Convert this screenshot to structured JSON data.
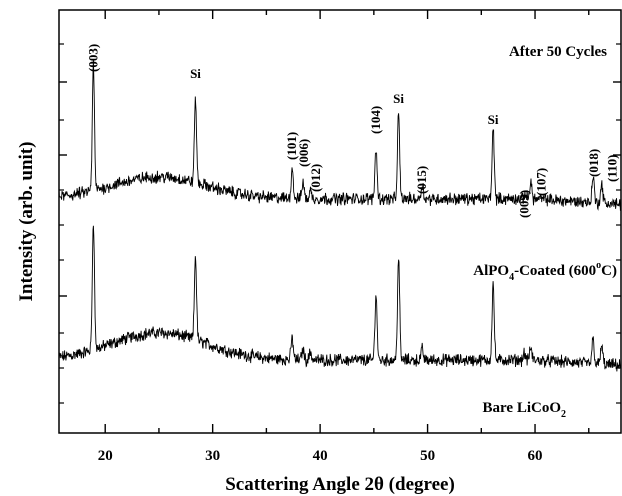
{
  "chart_data": {
    "type": "line",
    "xlabel": "Scattering Angle 2θ (degree)",
    "ylabel": "Intensity (arb. unit)",
    "xlim": [
      15.7,
      68
    ],
    "x_ticks": [
      20,
      30,
      40,
      50,
      60
    ],
    "y_scale": "arbitrary (traces vertically offset)",
    "grid": false,
    "series": [
      {
        "name": "After 50 Cycles",
        "baseline": 0.57,
        "hump": 0.2,
        "peaks": [
          {
            "x": 18.9,
            "h": 0.95
          },
          {
            "x": 28.4,
            "h": 0.62
          },
          {
            "x": 37.4,
            "h": 0.16
          },
          {
            "x": 38.4,
            "h": 0.08
          },
          {
            "x": 39.1,
            "h": 0.06
          },
          {
            "x": 45.2,
            "h": 0.49
          },
          {
            "x": 47.3,
            "h": 0.75
          },
          {
            "x": 49.5,
            "h": 0.08
          },
          {
            "x": 56.1,
            "h": 0.56
          },
          {
            "x": 59.0,
            "h": 0.05
          },
          {
            "x": 59.6,
            "h": 0.09
          },
          {
            "x": 65.4,
            "h": 0.18
          },
          {
            "x": 66.2,
            "h": 0.14
          }
        ]
      },
      {
        "name": "AlPO4-Coated (600°C)",
        "baseline": 1.75,
        "hump": 0.16,
        "peaks": [
          {
            "x": 18.9,
            "h": 0.92
          },
          {
            "x": 28.4,
            "h": 0.62
          },
          {
            "x": 37.4,
            "h": 0.22
          },
          {
            "x": 38.4,
            "h": 0.13
          },
          {
            "x": 39.1,
            "h": 0.06
          },
          {
            "x": 45.2,
            "h": 0.38
          },
          {
            "x": 47.3,
            "h": 0.62
          },
          {
            "x": 49.5,
            "h": 0.11
          },
          {
            "x": 56.1,
            "h": 0.52
          },
          {
            "x": 59.1,
            "h": 0.04
          },
          {
            "x": 59.6,
            "h": 0.13
          },
          {
            "x": 65.4,
            "h": 0.2
          },
          {
            "x": 66.2,
            "h": 0.14
          }
        ]
      }
    ],
    "peak_labels": [
      {
        "text": "(003)",
        "x": 18.9,
        "rotated": true
      },
      {
        "text": "Si",
        "x": 28.4,
        "rotated": false
      },
      {
        "text": "(101)",
        "x": 37.4,
        "rotated": true
      },
      {
        "text": "(006)",
        "x": 38.5,
        "rotated": true
      },
      {
        "text": "(012)",
        "x": 39.6,
        "rotated": true
      },
      {
        "text": "(104)",
        "x": 45.2,
        "rotated": true
      },
      {
        "text": "Si",
        "x": 47.3,
        "rotated": false
      },
      {
        "text": "(015)",
        "x": 49.5,
        "rotated": true
      },
      {
        "text": "Si",
        "x": 56.1,
        "rotated": false
      },
      {
        "text": "(009)",
        "x": 59.0,
        "rotated": true
      },
      {
        "text": "(107)",
        "x": 60.6,
        "rotated": true
      },
      {
        "text": "(018)",
        "x": 65.5,
        "rotated": true
      },
      {
        "text": "(110)",
        "x": 67.2,
        "rotated": true
      }
    ],
    "annotations": {
      "after": "After 50 Cycles",
      "coated_main": "AlPO",
      "coated_sub": "4",
      "coated_rest": "-Coated (600",
      "coated_sup": "o",
      "coated_end": "C)",
      "bare_main": "Bare LiCoO",
      "bare_sub": "2"
    }
  }
}
